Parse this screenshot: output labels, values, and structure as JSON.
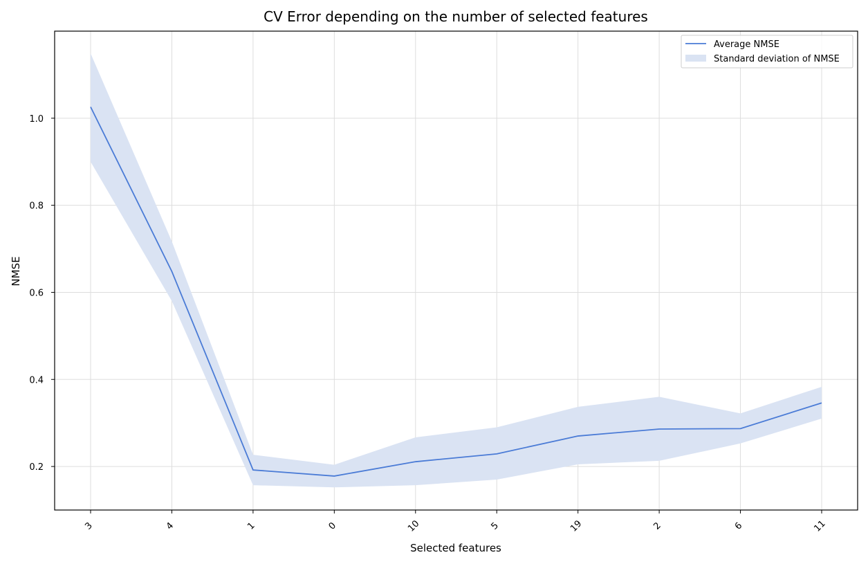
{
  "chart_data": {
    "type": "line",
    "title": "CV Error depending on the number of selected features",
    "xlabel": "Selected features",
    "ylabel": "NMSE",
    "categories": [
      "3",
      "4",
      "1",
      "0",
      "10",
      "5",
      "19",
      "2",
      "6",
      "11"
    ],
    "ylim": [
      0.1,
      1.2
    ],
    "yticks": [
      0.2,
      0.4,
      0.6,
      0.8,
      1.0
    ],
    "ytick_labels": [
      "0.2",
      "0.4",
      "0.6",
      "0.8",
      "1.0"
    ],
    "grid": true,
    "legend_position": "top-right",
    "series": [
      {
        "name": "Average NMSE",
        "values": [
          1.026,
          0.648,
          0.192,
          0.178,
          0.211,
          0.229,
          0.27,
          0.286,
          0.287,
          0.346
        ],
        "color": "#4a7bd6"
      }
    ],
    "band": {
      "name": "Standard deviation of NMSE",
      "lower": [
        0.9,
        0.58,
        0.157,
        0.152,
        0.157,
        0.17,
        0.205,
        0.213,
        0.253,
        0.31
      ],
      "upper": [
        1.149,
        0.717,
        0.227,
        0.204,
        0.267,
        0.29,
        0.337,
        0.36,
        0.322,
        0.383
      ],
      "color": "#dae3f3"
    }
  }
}
